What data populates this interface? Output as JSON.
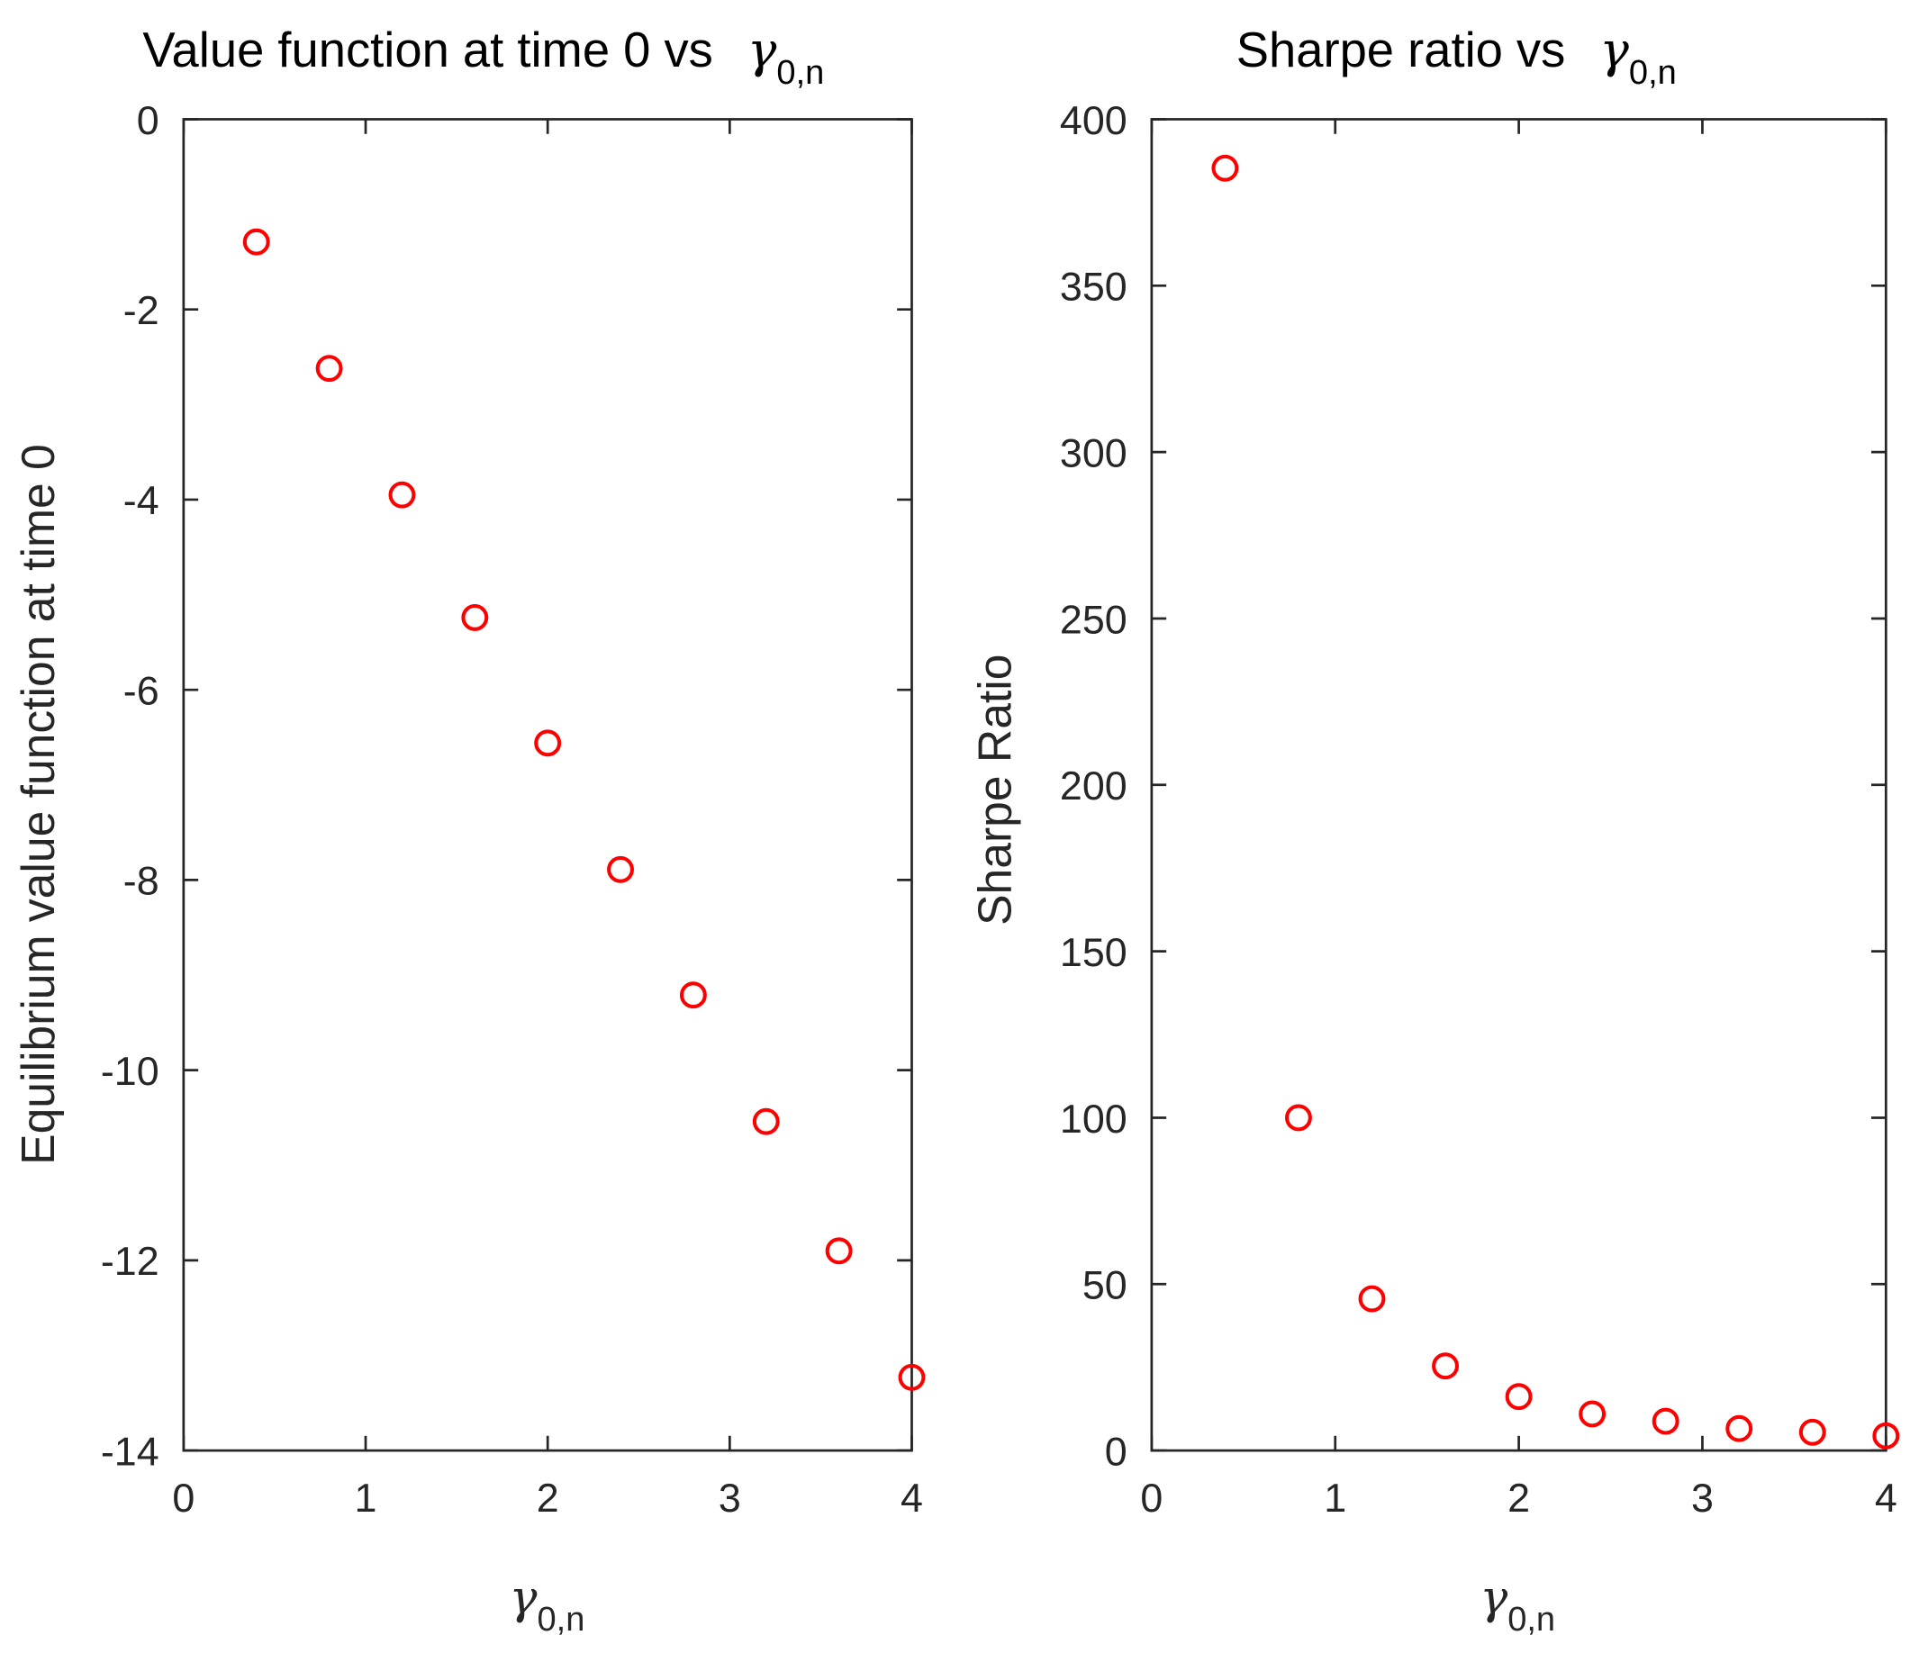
{
  "chart_data": [
    {
      "type": "scatter",
      "title": "Value function at time 0 vs",
      "title_symbol": "γ",
      "title_subscript": "0,n",
      "xlabel_symbol": "γ",
      "xlabel_subscript": "0,n",
      "ylabel": "Equilibrium value function at time 0",
      "xlim": [
        0,
        4
      ],
      "ylim": [
        -14,
        0
      ],
      "xticks": [
        "0",
        "1",
        "2",
        "3",
        "4"
      ],
      "yticks": [
        "0",
        "-2",
        "-4",
        "-6",
        "-8",
        "-10",
        "-12",
        "-14"
      ],
      "grid": false,
      "marker": "circle-open",
      "color": "#ff0000",
      "x": [
        0.4,
        0.8,
        1.2,
        1.6,
        2.0,
        2.4,
        2.8,
        3.2,
        3.6,
        4.0
      ],
      "y": [
        -1.29,
        -2.62,
        -3.95,
        -5.24,
        -6.56,
        -7.89,
        -9.21,
        -10.54,
        -11.9,
        -13.23
      ]
    },
    {
      "type": "scatter",
      "title": "Sharpe ratio vs",
      "title_symbol": "γ",
      "title_subscript": "0,n",
      "xlabel_symbol": "γ",
      "xlabel_subscript": "0,n",
      "ylabel": "Sharpe Ratio",
      "xlim": [
        0,
        4
      ],
      "ylim": [
        0,
        400
      ],
      "xticks": [
        "0",
        "1",
        "2",
        "3",
        "4"
      ],
      "yticks": [
        "0",
        "50",
        "100",
        "150",
        "200",
        "250",
        "300",
        "350",
        "400"
      ],
      "grid": false,
      "marker": "circle-open",
      "color": "#ff0000",
      "x": [
        0.4,
        0.8,
        1.2,
        1.6,
        2.0,
        2.4,
        2.8,
        3.2,
        3.6,
        4.0
      ],
      "y": [
        385.3,
        100,
        45.6,
        25.4,
        16.2,
        11.0,
        8.8,
        6.6,
        5.5,
        4.4
      ]
    }
  ]
}
